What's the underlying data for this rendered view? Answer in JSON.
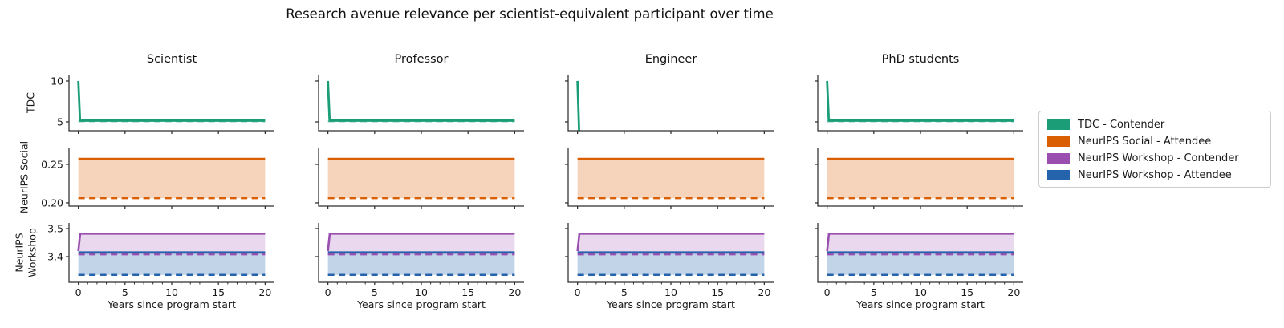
{
  "chart_data": {
    "type": "line",
    "title": "Research avenue relevance per scientist-equivalent participant over time",
    "xlabel": "Years since program start",
    "columns": [
      "Scientist",
      "Professor",
      "Engineer",
      "PhD students"
    ],
    "xlim": [
      -1,
      21
    ],
    "x_ticks": [
      0,
      5,
      10,
      15,
      20
    ],
    "x_minor_step": 1,
    "legend": [
      {
        "label": "TDC - Contender",
        "color": "#1b9e77"
      },
      {
        "label": "NeurIPS Social - Attendee",
        "color": "#d95f02"
      },
      {
        "label": "NeurIPS Workshop - Contender",
        "color": "#9a4fb0"
      },
      {
        "label": "NeurIPS Workshop - Attendee",
        "color": "#2563ad"
      }
    ],
    "rows": [
      {
        "label": "TDC",
        "ylim": [
          3.92,
          10.78
        ],
        "yticks": [
          {
            "v": 5,
            "label": "5"
          },
          {
            "v": 10,
            "label": "10"
          }
        ],
        "x_minor_ticks": false,
        "fills": [],
        "series": [
          {
            "name": "TDC - Contender (baseline, dashed)",
            "color": "#98d5c3",
            "dash": true,
            "width": 2.2,
            "points": [
              [
                0,
                5.05
              ],
              [
                20,
                5.05
              ]
            ],
            "by_column": {
              "2": [
                [
                  0,
                  3.5
                ],
                [
                  20,
                  3.5
                ]
              ]
            }
          },
          {
            "name": "TDC - Contender",
            "color": "#1b9e77",
            "dash": false,
            "width": 2.8,
            "points": [
              [
                0,
                10
              ],
              [
                0.18,
                5.15
              ],
              [
                20,
                5.15
              ]
            ],
            "by_column": {
              "2": [
                [
                  0,
                  10
                ],
                [
                  0.18,
                  3.5
                ],
                [
                  20,
                  3.5
                ]
              ]
            }
          }
        ]
      },
      {
        "label": "NeurIPS Social",
        "ylim": [
          0.1958,
          0.2708
        ],
        "yticks": [
          {
            "v": 0.2,
            "label": "0.20"
          },
          {
            "v": 0.25,
            "label": "0.25"
          }
        ],
        "x_minor_ticks": false,
        "fills": [
          {
            "upper": 1,
            "lower": 0,
            "color": "#d95f02",
            "opacity": 0.27
          }
        ],
        "series": [
          {
            "name": "NeurIPS Social - Attendee (baseline, dashed)",
            "color": "#d95f02",
            "dash": true,
            "width": 2.4,
            "points": [
              [
                0,
                0.206
              ],
              [
                20,
                0.206
              ]
            ],
            "by_column": {}
          },
          {
            "name": "NeurIPS Social - Attendee",
            "color": "#d95f02",
            "dash": false,
            "width": 3,
            "points": [
              [
                0,
                0.257
              ],
              [
                20,
                0.257
              ]
            ],
            "by_column": {}
          }
        ]
      },
      {
        "label": "NeurIPS Workshop",
        "ylim": [
          3.3086,
          3.52
        ],
        "yticks": [
          {
            "v": 3.4,
            "label": "3.4"
          },
          {
            "v": 3.5,
            "label": "3.5"
          }
        ],
        "x_minor_ticks": true,
        "fills": [
          {
            "upper": 2,
            "lower": 1,
            "color": "#2563ad",
            "opacity": 0.28
          },
          {
            "upper": 3,
            "lower": 0,
            "color": "#9a4fb0",
            "opacity": 0.22
          }
        ],
        "series": [
          {
            "name": "NeurIPS Workshop - Contender (baseline, dashed)",
            "color": "#9a4fb0",
            "dash": true,
            "width": 2.4,
            "points": [
              [
                0,
                3.408
              ],
              [
                20,
                3.408
              ]
            ],
            "by_column": {}
          },
          {
            "name": "NeurIPS Workshop - Attendee (baseline, dashed)",
            "color": "#2563ad",
            "dash": true,
            "width": 2.4,
            "points": [
              [
                0,
                3.335
              ],
              [
                20,
                3.335
              ]
            ],
            "by_column": {}
          },
          {
            "name": "NeurIPS Workshop - Attendee",
            "color": "#2563ad",
            "dash": false,
            "width": 2.8,
            "points": [
              [
                0,
                3.415
              ],
              [
                20,
                3.415
              ]
            ],
            "by_column": {}
          },
          {
            "name": "NeurIPS Workshop - Contender",
            "color": "#9a4fb0",
            "dash": false,
            "width": 2.6,
            "points": [
              [
                0,
                3.42
              ],
              [
                0.2,
                3.482
              ],
              [
                20,
                3.482
              ]
            ],
            "by_column": {}
          }
        ]
      }
    ]
  }
}
